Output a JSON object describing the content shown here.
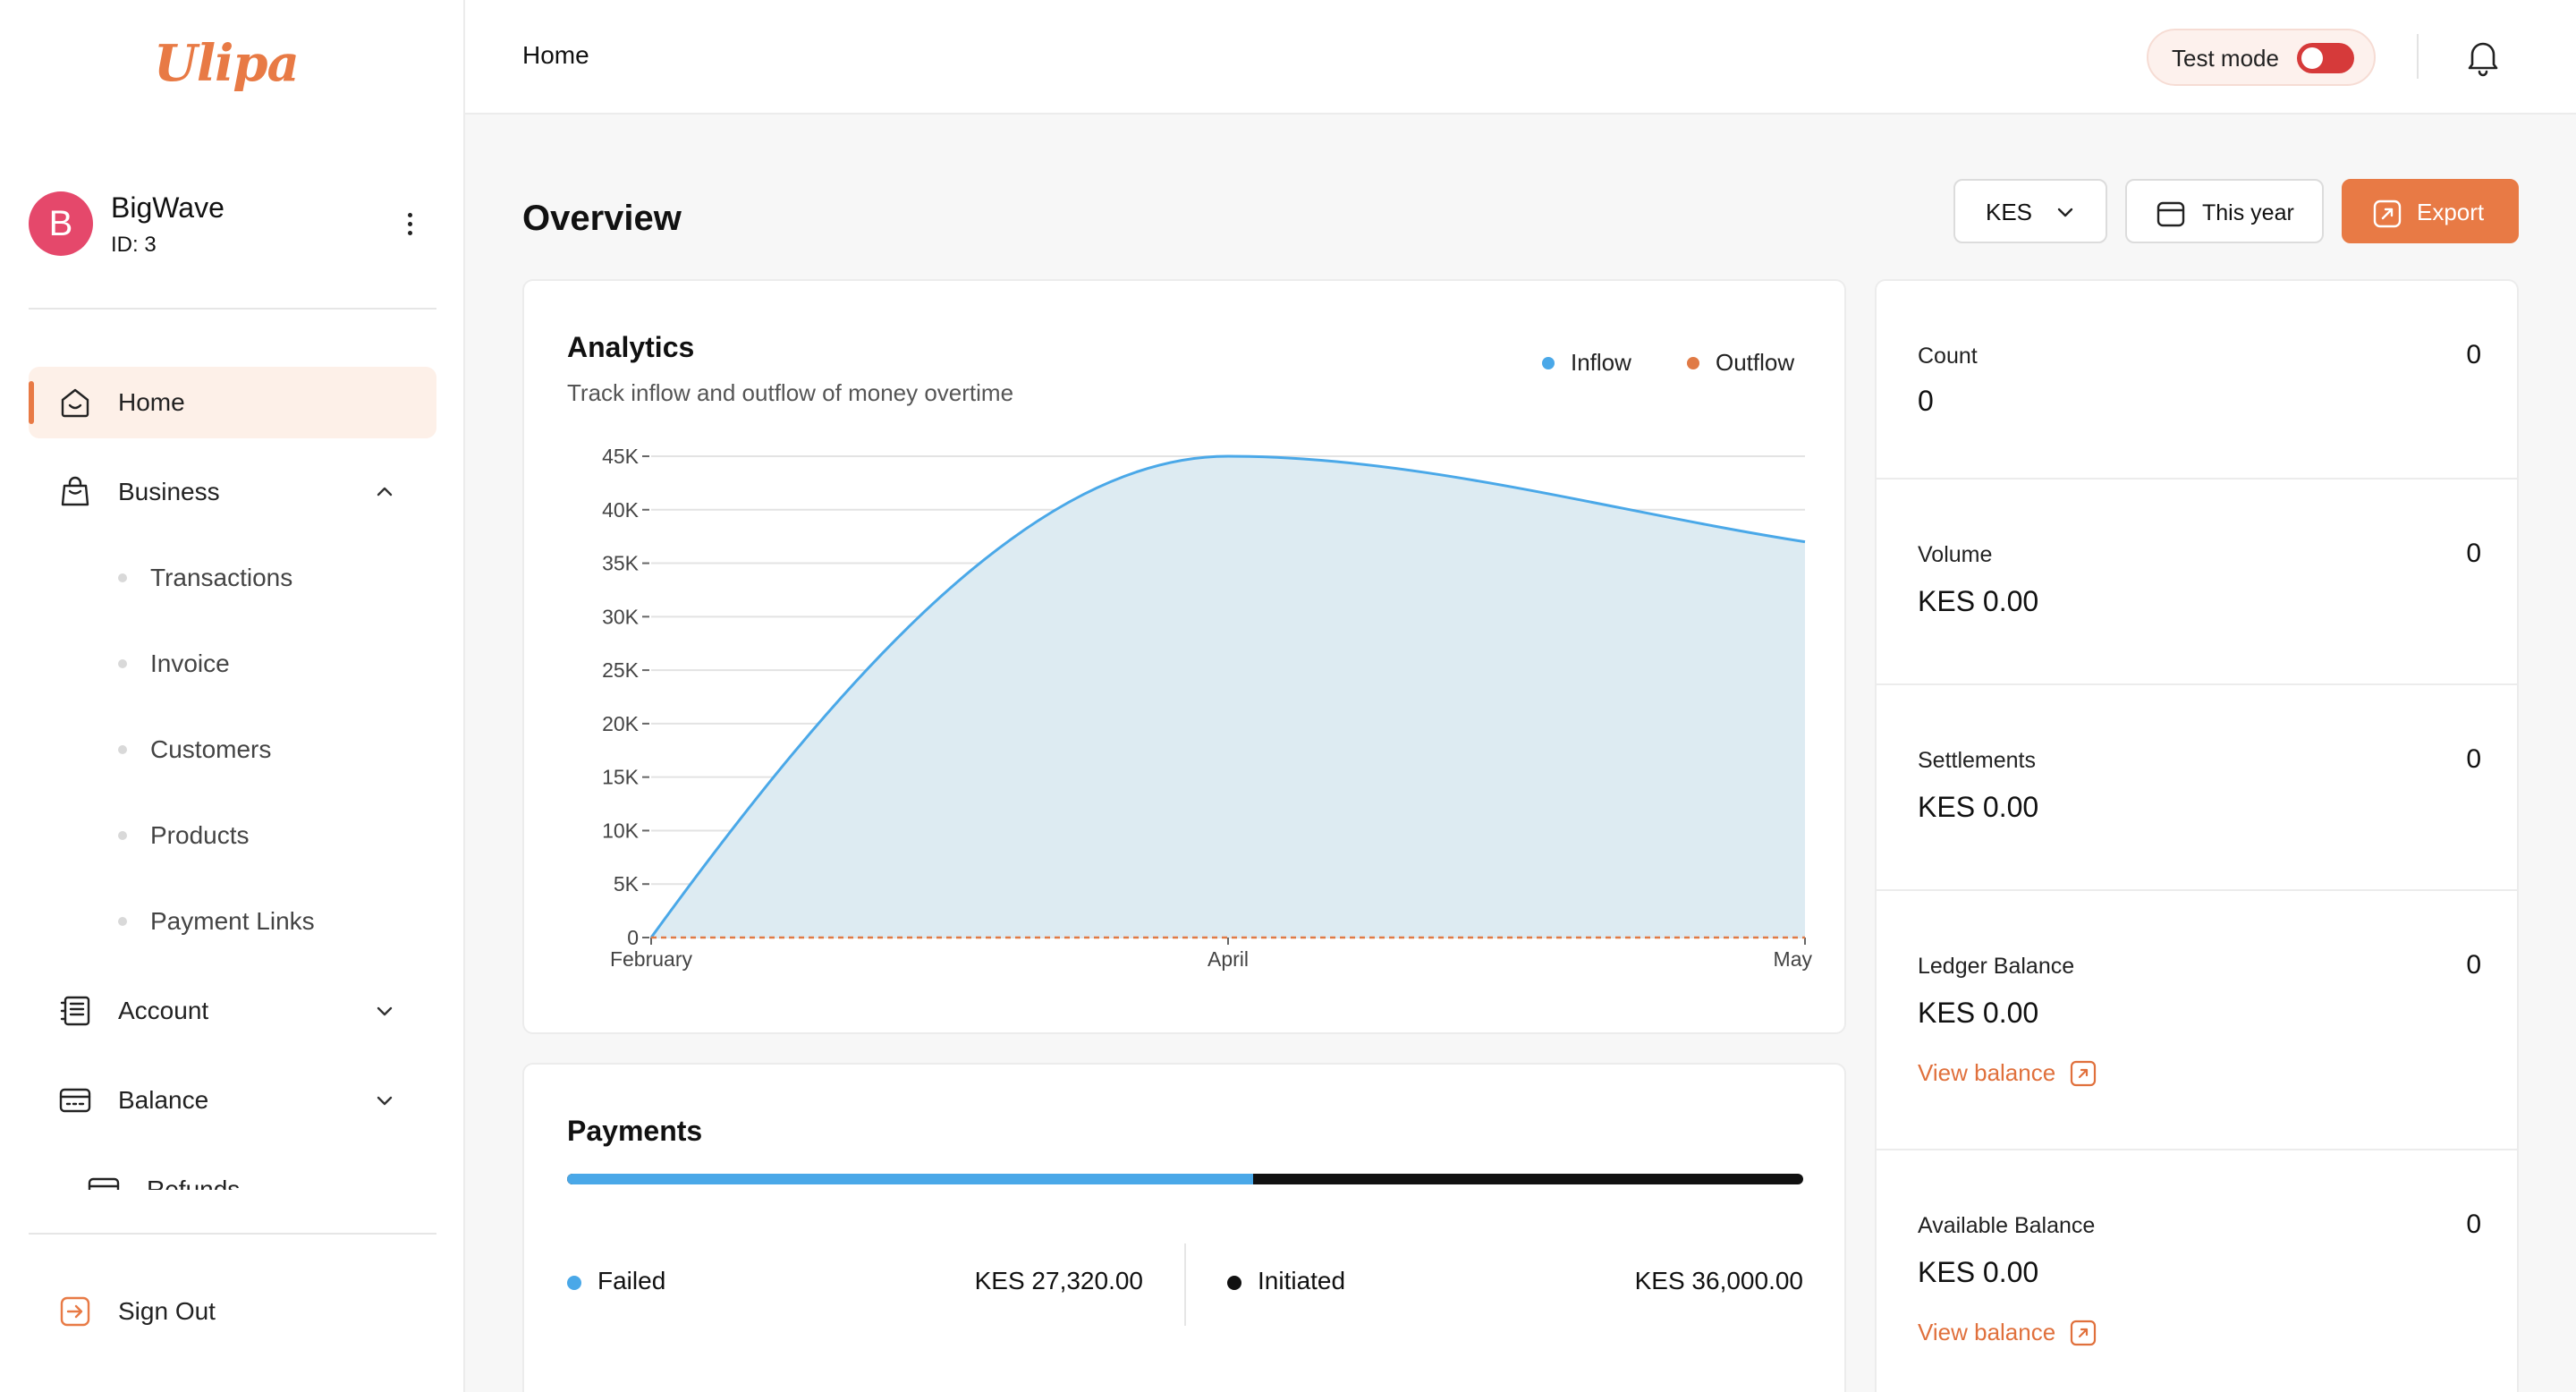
{
  "brand": {
    "logo_text": "Ulipa",
    "accent": "#e87a45"
  },
  "profile": {
    "initial": "B",
    "name": "BigWave",
    "id_label": "ID: 3"
  },
  "sidebar": {
    "items": [
      {
        "label": "Home",
        "icon": "home-icon",
        "active": true
      },
      {
        "label": "Business",
        "icon": "shopping-bag-icon",
        "expanded": true,
        "children": [
          "Transactions",
          "Invoice",
          "Customers",
          "Products",
          "Payment Links"
        ]
      },
      {
        "label": "Account",
        "icon": "ledger-icon",
        "expanded": false
      },
      {
        "label": "Balance",
        "icon": "wallet-icon",
        "expanded": false
      },
      {
        "label": "Refunds",
        "icon": "wallet-icon",
        "expanded": false
      }
    ],
    "sign_out": "Sign Out"
  },
  "topbar": {
    "breadcrumb": "Home",
    "test_mode_label": "Test mode",
    "test_mode_on": true
  },
  "main": {
    "title": "Overview",
    "currency": "KES",
    "period": "This year",
    "export_label": "Export"
  },
  "analytics": {
    "title": "Analytics",
    "subtitle": "Track inflow and outflow of money overtime",
    "legend": [
      {
        "name": "Inflow",
        "color": "#4aa8e8"
      },
      {
        "name": "Outflow",
        "color": "#e07a45"
      }
    ]
  },
  "chart_data": {
    "type": "area",
    "x": [
      "February",
      "April",
      "May"
    ],
    "xticks": [
      "February",
      "April",
      "May"
    ],
    "yticks": [
      "0",
      "5K",
      "10K",
      "15K",
      "20K",
      "25K",
      "30K",
      "35K",
      "40K",
      "45K"
    ],
    "ylim": [
      0,
      45000
    ],
    "grid": true,
    "legend_position": "top-right",
    "series": [
      {
        "name": "Inflow",
        "values": [
          0,
          45000,
          37000
        ],
        "color": "#4aa8e8",
        "style": "smooth-area"
      },
      {
        "name": "Outflow",
        "values": [
          0,
          0,
          0
        ],
        "color": "#e07a45",
        "style": "dashed"
      }
    ]
  },
  "payments": {
    "title": "Payments",
    "failed_share": 0.555,
    "items": [
      {
        "label": "Failed",
        "amount": "KES 27,320.00",
        "color": "#4aa8e8"
      },
      {
        "label": "Initiated",
        "amount": "KES 36,000.00",
        "color": "#111111"
      }
    ]
  },
  "stats": [
    {
      "label": "Count",
      "value": "0",
      "count": "0"
    },
    {
      "label": "Volume",
      "value": "KES 0.00",
      "count": "0"
    },
    {
      "label": "Settlements",
      "value": "KES 0.00",
      "count": "0"
    },
    {
      "label": "Ledger Balance",
      "value": "KES 0.00",
      "count": "0",
      "link": "View balance"
    },
    {
      "label": "Available Balance",
      "value": "KES 0.00",
      "count": "0",
      "link": "View balance"
    }
  ]
}
